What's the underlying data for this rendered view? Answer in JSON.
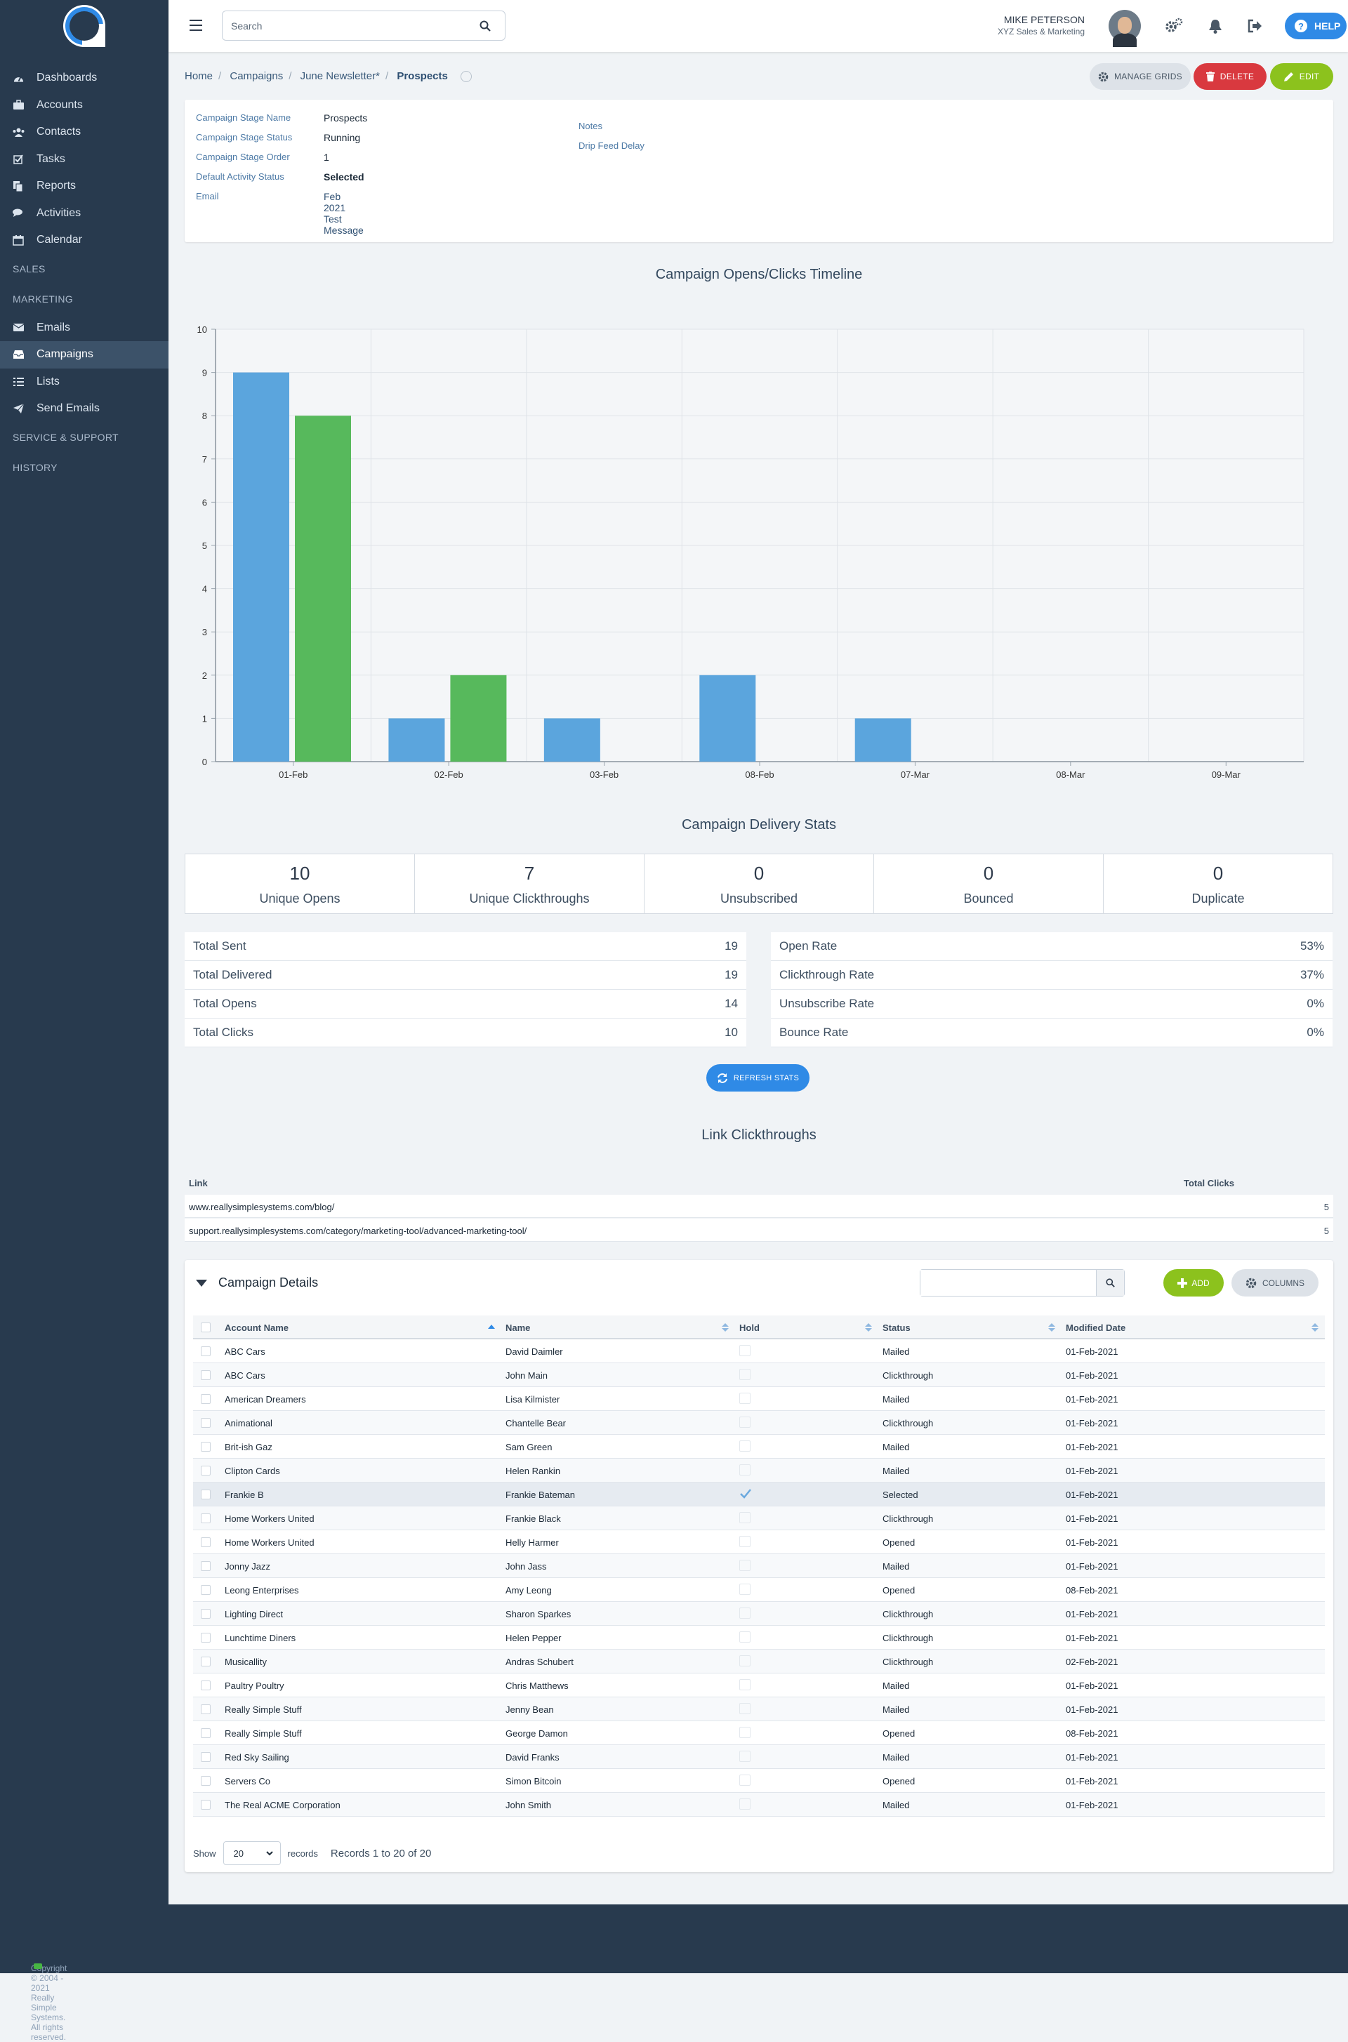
{
  "sidebar": {
    "items": [
      {
        "label": "Dashboards",
        "icon": "dashboard-icon"
      },
      {
        "label": "Accounts",
        "icon": "briefcase-icon"
      },
      {
        "label": "Contacts",
        "icon": "users-icon"
      },
      {
        "label": "Tasks",
        "icon": "checkbox-icon"
      },
      {
        "label": "Reports",
        "icon": "copy-icon"
      },
      {
        "label": "Activities",
        "icon": "chat-icon"
      },
      {
        "label": "Calendar",
        "icon": "calendar-icon"
      }
    ],
    "sections": [
      "SALES",
      "MARKETING",
      "SERVICE & SUPPORT",
      "HISTORY"
    ],
    "marketing_items": [
      {
        "label": "Emails",
        "icon": "envelope-icon"
      },
      {
        "label": "Campaigns",
        "icon": "inbox-icon"
      },
      {
        "label": "Lists",
        "icon": "list-icon"
      },
      {
        "label": "Send Emails",
        "icon": "paper-plane-icon"
      }
    ]
  },
  "topbar": {
    "search_placeholder": "Search",
    "user_name": "MIKE PETERSON",
    "user_company": "XYZ Sales & Marketing",
    "help_label": "HELP"
  },
  "breadcrumb": {
    "home": "Home",
    "campaigns": "Campaigns",
    "campaign": "June Newsletter*",
    "current": "Prospects"
  },
  "actions": {
    "manage_grids": "MANAGE GRIDS",
    "delete": "DELETE",
    "edit": "EDIT"
  },
  "details": {
    "stage_name_label": "Campaign Stage Name",
    "stage_name": "Prospects",
    "stage_status_label": "Campaign Stage Status",
    "stage_status": "Running",
    "stage_order_label": "Campaign Stage Order",
    "stage_order": "1",
    "default_status_label": "Default Activity Status",
    "default_status": "Selected",
    "email_label": "Email",
    "email": "Feb 2021 Test Message",
    "notes_label": "Notes",
    "drip_label": "Drip Feed Delay"
  },
  "chart_data": {
    "type": "bar",
    "title": "Campaign Opens/Clicks Timeline",
    "categories": [
      "01-Feb",
      "02-Feb",
      "03-Feb",
      "08-Feb",
      "07-Mar",
      "08-Mar",
      "09-Mar"
    ],
    "series": [
      {
        "values": [
          9,
          1,
          1,
          2,
          1,
          0,
          0
        ],
        "color": "#5ba5dd"
      },
      {
        "values": [
          8,
          2,
          0,
          0,
          0,
          0,
          0
        ],
        "color": "#57b95c"
      }
    ],
    "ylim": [
      0,
      10
    ],
    "yticks": [
      0,
      1,
      2,
      3,
      4,
      5,
      6,
      7,
      8,
      9,
      10
    ],
    "grid": true
  },
  "delivery": {
    "title": "Campaign Delivery Stats",
    "tiles": [
      {
        "value": "10",
        "label": "Unique Opens"
      },
      {
        "value": "7",
        "label": "Unique Clickthroughs"
      },
      {
        "value": "0",
        "label": "Unsubscribed"
      },
      {
        "value": "0",
        "label": "Bounced"
      },
      {
        "value": "0",
        "label": "Duplicate"
      }
    ],
    "left": [
      {
        "label": "Total Sent",
        "value": "19"
      },
      {
        "label": "Total Delivered",
        "value": "19"
      },
      {
        "label": "Total Opens",
        "value": "14"
      },
      {
        "label": "Total Clicks",
        "value": "10"
      }
    ],
    "right": [
      {
        "label": "Open Rate",
        "value": "53%"
      },
      {
        "label": "Clickthrough Rate",
        "value": "37%"
      },
      {
        "label": "Unsubscribe Rate",
        "value": "0%"
      },
      {
        "label": "Bounce Rate",
        "value": "0%"
      }
    ],
    "refresh_label": "REFRESH STATS"
  },
  "links": {
    "title": "Link Clickthroughs",
    "col_link": "Link",
    "col_clicks": "Total Clicks",
    "rows": [
      {
        "url": "www.reallysimplesystems.com/blog/",
        "clicks": "5"
      },
      {
        "url": "support.reallysimplesystems.com/category/marketing-tool/advanced-marketing-tool/",
        "clicks": "5"
      }
    ]
  },
  "details_grid": {
    "title": "Campaign Details",
    "add_label": "ADD",
    "columns_label": "COLUMNS",
    "headers": [
      "Account Name",
      "Name",
      "Hold",
      "Status",
      "Modified Date"
    ],
    "rows": [
      [
        "ABC Cars",
        "David Daimler",
        false,
        "Mailed",
        "01-Feb-2021"
      ],
      [
        "ABC Cars",
        "John Main",
        false,
        "Clickthrough",
        "01-Feb-2021"
      ],
      [
        "American Dreamers",
        "Lisa Kilmister",
        false,
        "Mailed",
        "01-Feb-2021"
      ],
      [
        "Animational",
        "Chantelle Bear",
        false,
        "Clickthrough",
        "01-Feb-2021"
      ],
      [
        "Brit-ish Gaz",
        "Sam Green",
        false,
        "Mailed",
        "01-Feb-2021"
      ],
      [
        "Clipton Cards",
        "Helen Rankin",
        false,
        "Mailed",
        "01-Feb-2021"
      ],
      [
        "Frankie B",
        "Frankie Bateman",
        true,
        "Selected",
        "01-Feb-2021"
      ],
      [
        "Home Workers United",
        "Frankie Black",
        false,
        "Clickthrough",
        "01-Feb-2021"
      ],
      [
        "Home Workers United",
        "Helly Harmer",
        false,
        "Opened",
        "01-Feb-2021"
      ],
      [
        "Jonny Jazz",
        "John Jass",
        false,
        "Mailed",
        "01-Feb-2021"
      ],
      [
        "Leong Enterprises",
        "Amy Leong",
        false,
        "Opened",
        "08-Feb-2021"
      ],
      [
        "Lighting Direct",
        "Sharon Sparkes",
        false,
        "Clickthrough",
        "01-Feb-2021"
      ],
      [
        "Lunchtime Diners",
        "Helen Pepper",
        false,
        "Clickthrough",
        "01-Feb-2021"
      ],
      [
        "Musicallity",
        "Andras Schubert",
        false,
        "Clickthrough",
        "02-Feb-2021"
      ],
      [
        "Paultry Poultry",
        "Chris Matthews",
        false,
        "Mailed",
        "01-Feb-2021"
      ],
      [
        "Really Simple Stuff",
        "Jenny Bean",
        false,
        "Mailed",
        "01-Feb-2021"
      ],
      [
        "Really Simple Stuff",
        "George Damon",
        false,
        "Opened",
        "08-Feb-2021"
      ],
      [
        "Red Sky Sailing",
        "David Franks",
        false,
        "Mailed",
        "01-Feb-2021"
      ],
      [
        "Servers Co",
        "Simon Bitcoin",
        false,
        "Opened",
        "01-Feb-2021"
      ],
      [
        "The Real ACME Corporation",
        "John Smith",
        false,
        "Mailed",
        "01-Feb-2021"
      ]
    ],
    "show_label": "Show",
    "page_size": "20",
    "records_label": "records",
    "records_summary": "Records 1 to 20 of 20"
  },
  "footer": {
    "copyright": "Copyright © 2004 - 2021 Really Simple Systems. All rights reserved."
  }
}
